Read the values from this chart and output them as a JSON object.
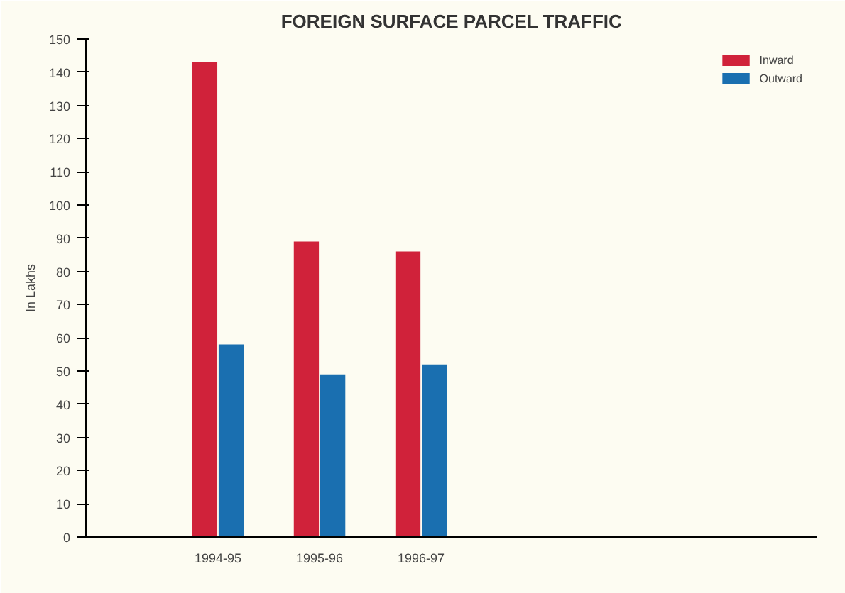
{
  "chart_data": {
    "type": "bar",
    "title": "FOREIGN SURFACE PARCEL TRAFFIC",
    "ylabel": "In Lakhs",
    "categories": [
      "1994-95",
      "1995-96",
      "1996-97"
    ],
    "series": [
      {
        "name": "Inward",
        "color": "#d0223a",
        "values": [
          143,
          89,
          86
        ]
      },
      {
        "name": "Outward",
        "color": "#1a6fb0",
        "values": [
          58,
          49,
          52
        ]
      }
    ],
    "ylim": [
      0,
      150
    ],
    "yticks": [
      0,
      10,
      20,
      30,
      40,
      50,
      60,
      70,
      80,
      90,
      100,
      110,
      120,
      130,
      140,
      150
    ],
    "grid": false,
    "legend": "top right"
  }
}
